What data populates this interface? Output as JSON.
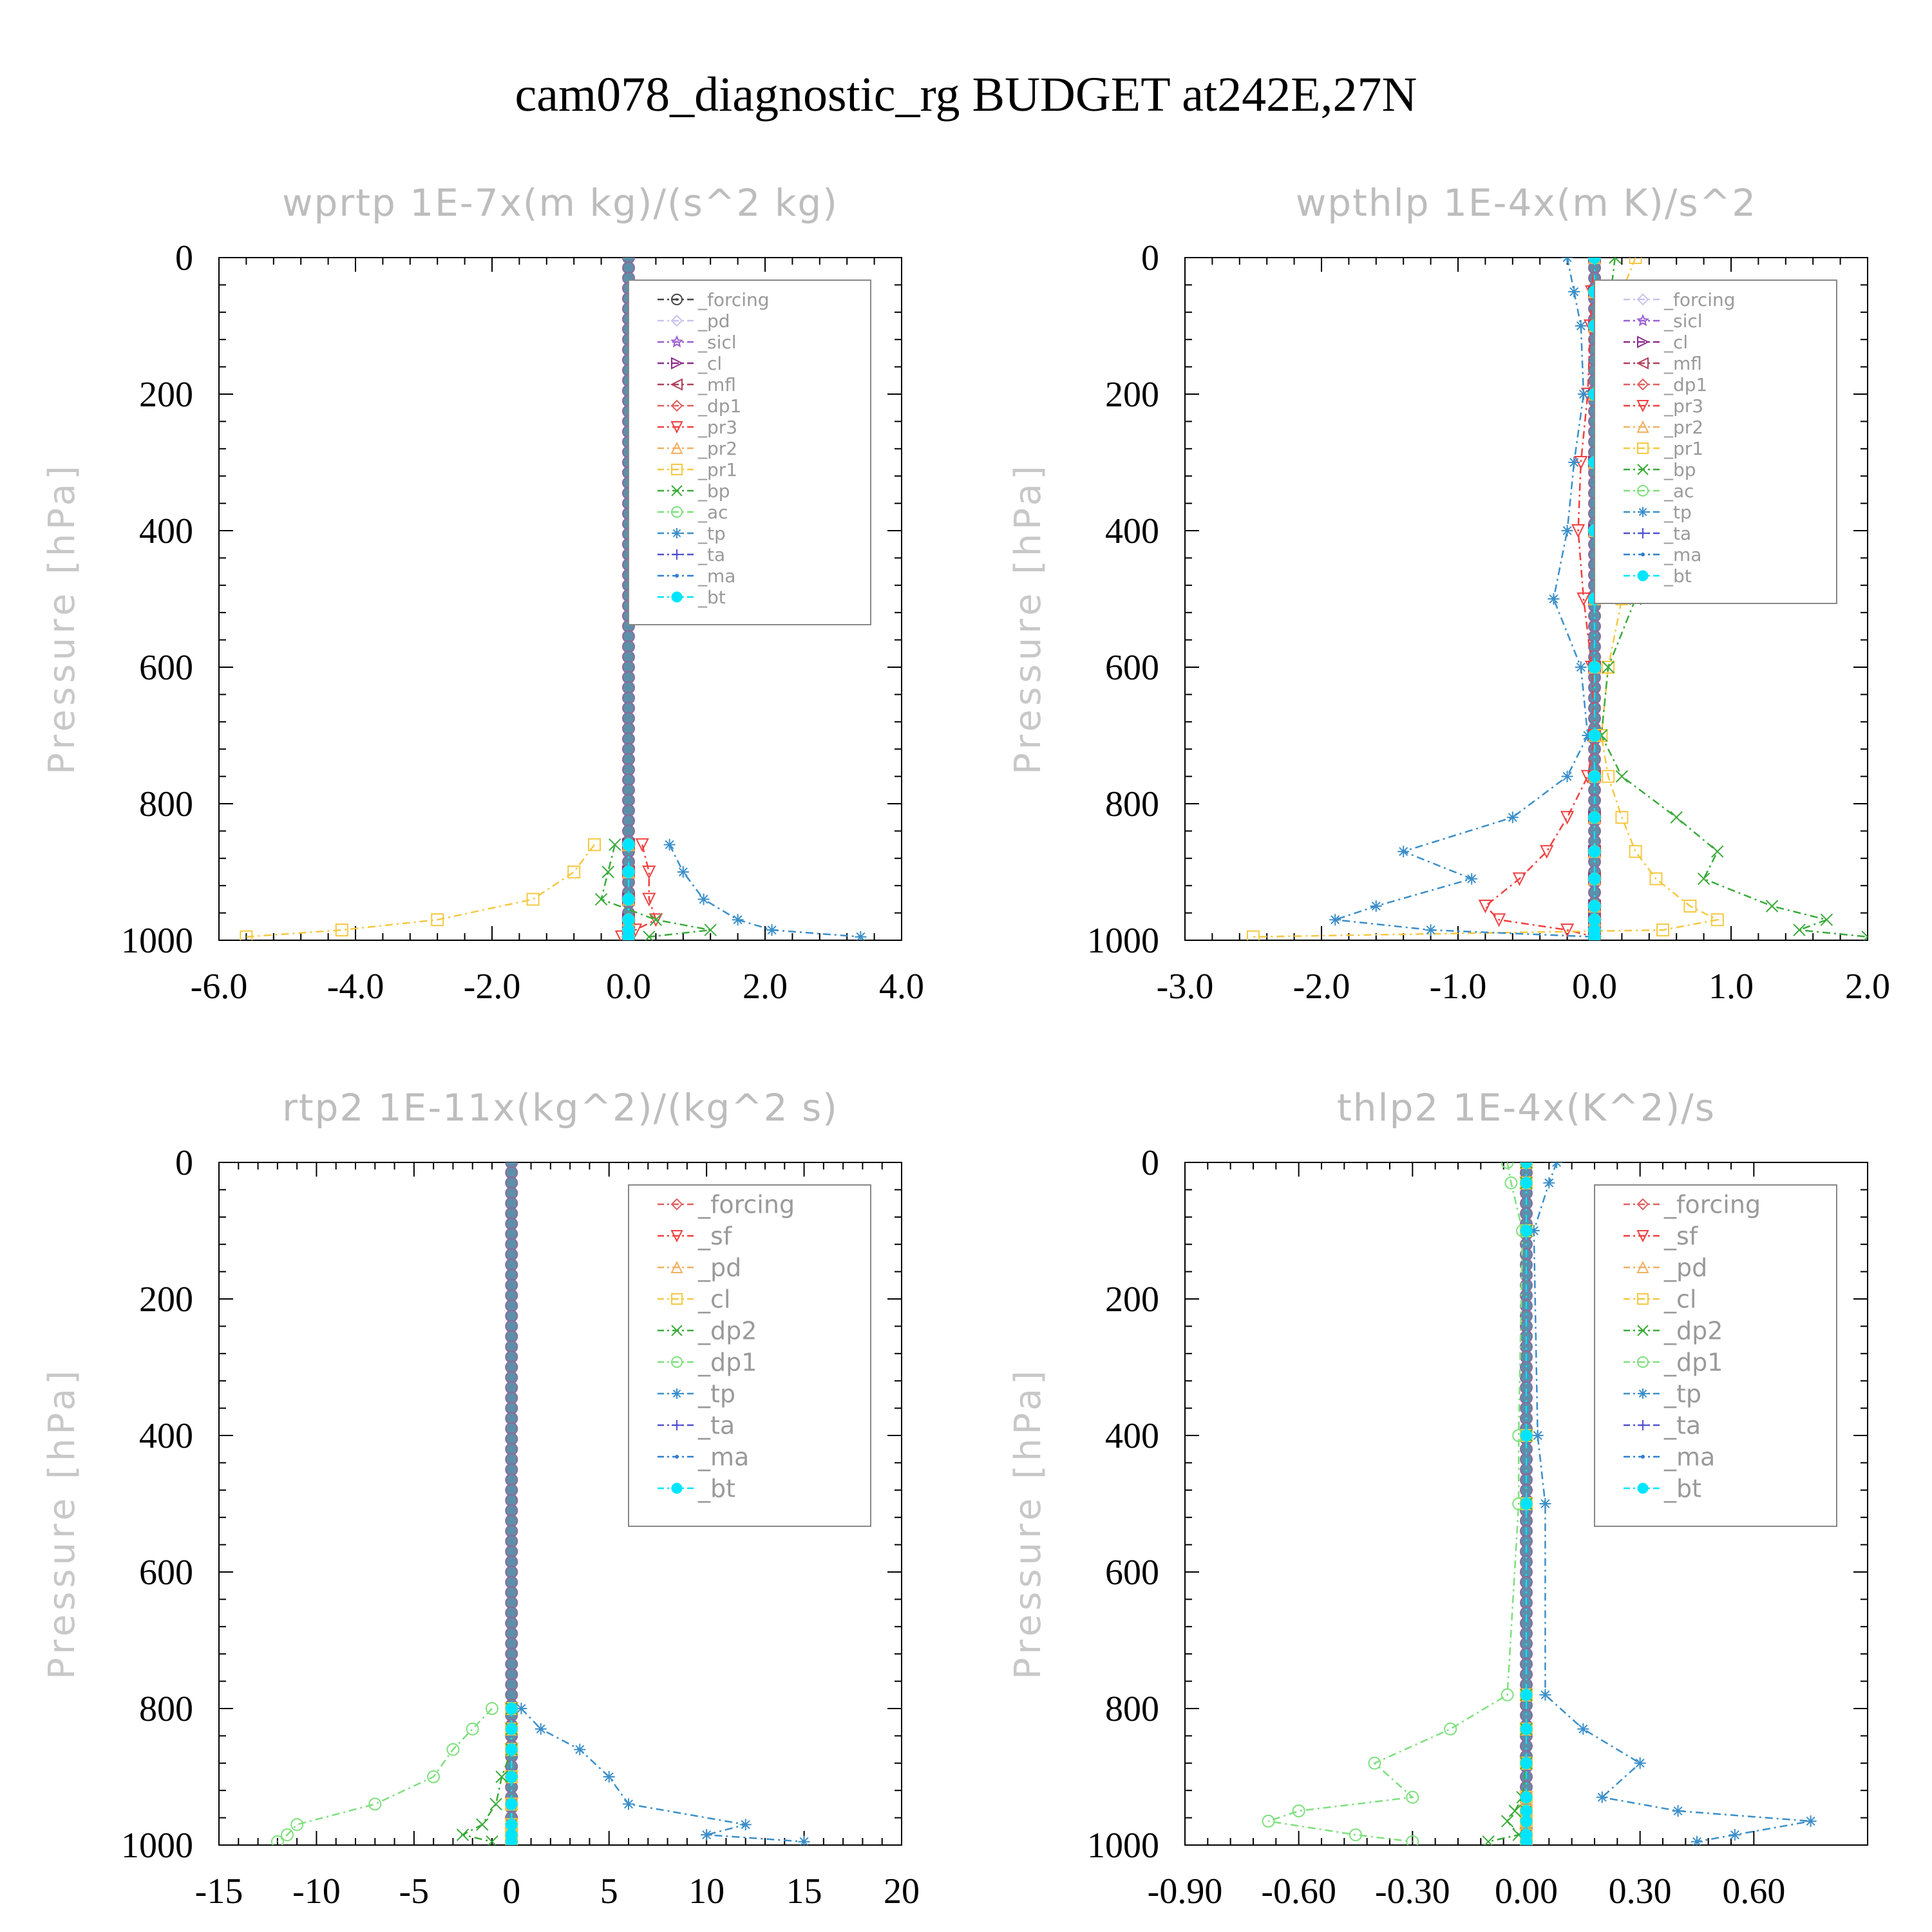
{
  "figure": {
    "title": "cam078_diagnostic_rg  BUDGET at242E,27N"
  },
  "chart_data": [
    {
      "type": "line",
      "title": "wprtp  1E-7x(m kg)/(s^2 kg)",
      "xlabel": "",
      "ylabel": "Pressure [hPa]",
      "xlim": [
        -6.0,
        4.0
      ],
      "ylim": [
        0,
        1000
      ],
      "y_inverted": true,
      "xticks": [
        "-6.0",
        "-4.0",
        "-2.0",
        "0.0",
        "2.0",
        "4.0"
      ],
      "xtick_values": [
        -6,
        -4,
        -2,
        0,
        2,
        4
      ],
      "yticks": [
        0,
        200,
        400,
        600,
        800,
        1000
      ],
      "grid": false,
      "legend_placement": "top-right",
      "pressure": [
        860,
        900,
        940,
        970,
        985,
        995
      ],
      "series": [
        {
          "name": "_forcing",
          "color": "#444444",
          "marker": "circle-dot",
          "values": [
            0,
            0,
            0,
            0,
            0,
            0
          ]
        },
        {
          "name": "_pd",
          "color": "#c9c3ef",
          "marker": "diamond",
          "values": [
            0,
            0,
            0,
            0,
            0,
            0
          ]
        },
        {
          "name": "_sicl",
          "color": "#9b5fd0",
          "marker": "star",
          "values": [
            0,
            0,
            0,
            0,
            0,
            0
          ]
        },
        {
          "name": "_cl",
          "color": "#8a2d8a",
          "marker": "triangle-right",
          "values": [
            0,
            0,
            0,
            0,
            0,
            0
          ]
        },
        {
          "name": "_mfl",
          "color": "#b0405a",
          "marker": "triangle-left",
          "values": [
            0,
            0,
            0,
            0,
            0,
            0
          ]
        },
        {
          "name": "_dp1",
          "color": "#e06060",
          "marker": "diamond",
          "values": [
            0,
            0,
            0,
            0,
            0,
            0
          ]
        },
        {
          "name": "_pr3",
          "color": "#f04040",
          "marker": "triangle-down",
          "values": [
            0.2,
            0.3,
            0.3,
            0.4,
            0.1,
            -0.1
          ]
        },
        {
          "name": "_pr2",
          "color": "#f0b060",
          "marker": "triangle-up",
          "values": [
            0,
            0,
            0,
            0,
            0,
            0
          ]
        },
        {
          "name": "_pr1",
          "color": "#f5c842",
          "marker": "square",
          "values": [
            -0.5,
            -0.8,
            -1.4,
            -2.8,
            -4.2,
            -5.6
          ]
        },
        {
          "name": "_bp",
          "color": "#3aaa3a",
          "marker": "x",
          "values": [
            -0.2,
            -0.3,
            -0.4,
            0.4,
            1.2,
            0.3
          ]
        },
        {
          "name": "_ac",
          "color": "#7de07d",
          "marker": "circle",
          "values": [
            0,
            0,
            0,
            0,
            0,
            0
          ]
        },
        {
          "name": "_tp",
          "color": "#3b8fc9",
          "marker": "asterisk",
          "values": [
            0.6,
            0.8,
            1.1,
            1.6,
            2.1,
            3.4
          ]
        },
        {
          "name": "_ta",
          "color": "#5050d0",
          "marker": "plus",
          "values": [
            0,
            0,
            0,
            0,
            0,
            0
          ]
        },
        {
          "name": "_ma",
          "color": "#2f7fd0",
          "marker": "dot",
          "values": [
            0,
            0,
            0,
            0,
            0,
            0
          ]
        },
        {
          "name": "_bt",
          "color": "#00e5ff",
          "marker": "filled-circle",
          "values": [
            0,
            0,
            0,
            0,
            0,
            0
          ]
        }
      ]
    },
    {
      "type": "line",
      "title": "wpthlp  1E-4x(m K)/s^2",
      "xlabel": "",
      "ylabel": "Pressure [hPa]",
      "xlim": [
        -3.0,
        2.0
      ],
      "ylim": [
        0,
        1000
      ],
      "y_inverted": true,
      "xticks": [
        "-3.0",
        "-2.0",
        "-1.0",
        "0.0",
        "1.0",
        "2.0"
      ],
      "xtick_values": [
        -3,
        -2,
        -1,
        0,
        1,
        2
      ],
      "yticks": [
        0,
        200,
        400,
        600,
        800,
        1000
      ],
      "grid": false,
      "legend_placement": "top-right",
      "pressure": [
        0,
        50,
        100,
        200,
        300,
        400,
        500,
        600,
        700,
        760,
        820,
        870,
        910,
        950,
        970,
        985,
        995
      ],
      "series": [
        {
          "name": "_forcing",
          "color": "#c9c3ef",
          "marker": "diamond",
          "values": [
            0,
            0,
            0,
            0,
            0,
            0,
            0,
            0,
            0,
            0,
            0,
            0,
            0,
            0,
            0,
            0,
            0
          ]
        },
        {
          "name": "_sicl",
          "color": "#9b5fd0",
          "marker": "star",
          "values": [
            0,
            0,
            0,
            0,
            0,
            0,
            0,
            0,
            0,
            0,
            0,
            0,
            0,
            0,
            0,
            0,
            0
          ]
        },
        {
          "name": "_cl",
          "color": "#8a2d8a",
          "marker": "triangle-right",
          "values": [
            0,
            0,
            0,
            0,
            0,
            0,
            0,
            0,
            0,
            0,
            0,
            0,
            0,
            0,
            0,
            0,
            0
          ]
        },
        {
          "name": "_mfl",
          "color": "#b0405a",
          "marker": "triangle-left",
          "values": [
            0,
            0,
            0,
            0,
            0,
            0,
            0,
            0,
            0,
            0,
            0,
            0,
            0,
            0,
            0,
            0,
            0
          ]
        },
        {
          "name": "_dp1",
          "color": "#e06060",
          "marker": "diamond",
          "values": [
            0,
            0,
            0,
            0,
            0,
            0,
            0,
            0,
            0,
            0,
            0,
            0,
            0,
            0,
            0,
            0,
            0
          ]
        },
        {
          "name": "_pr3",
          "color": "#f04040",
          "marker": "triangle-down",
          "values": [
            0,
            -0.02,
            -0.03,
            -0.05,
            -0.1,
            -0.12,
            -0.08,
            -0.02,
            0,
            -0.05,
            -0.2,
            -0.35,
            -0.55,
            -0.8,
            -0.7,
            -0.2,
            0
          ]
        },
        {
          "name": "_pr2",
          "color": "#f0b060",
          "marker": "triangle-up",
          "values": [
            0,
            0,
            0,
            0,
            0,
            0,
            0,
            0,
            0,
            0,
            0,
            0,
            0,
            0,
            0,
            0,
            0
          ]
        },
        {
          "name": "_pr1",
          "color": "#f5c842",
          "marker": "square",
          "values": [
            0.3,
            0.2,
            0.15,
            0.1,
            0.12,
            0.15,
            0.2,
            0.1,
            0.05,
            0.1,
            0.2,
            0.3,
            0.45,
            0.7,
            0.9,
            0.5,
            -2.5
          ]
        },
        {
          "name": "_bp",
          "color": "#3aaa3a",
          "marker": "x",
          "values": [
            0.15,
            0.12,
            0.1,
            0.2,
            0.3,
            0.4,
            0.3,
            0.1,
            0.05,
            0.2,
            0.6,
            0.9,
            0.8,
            1.3,
            1.7,
            1.5,
            2.0
          ]
        },
        {
          "name": "_ac",
          "color": "#7de07d",
          "marker": "circle",
          "values": [
            0,
            0,
            0,
            0,
            0,
            0,
            0,
            0,
            0,
            0,
            0,
            0,
            0,
            0,
            0,
            0,
            0
          ]
        },
        {
          "name": "_tp",
          "color": "#3b8fc9",
          "marker": "asterisk",
          "values": [
            -0.2,
            -0.15,
            -0.1,
            -0.08,
            -0.15,
            -0.2,
            -0.3,
            -0.1,
            -0.05,
            -0.2,
            -0.6,
            -1.4,
            -0.9,
            -1.6,
            -1.9,
            -1.2,
            0
          ]
        },
        {
          "name": "_ta",
          "color": "#5050d0",
          "marker": "plus",
          "values": [
            0,
            0,
            0,
            0,
            0,
            0,
            0,
            0,
            0,
            0,
            0,
            0,
            0,
            0,
            0,
            0,
            0
          ]
        },
        {
          "name": "_ma",
          "color": "#2f7fd0",
          "marker": "dot",
          "values": [
            0,
            0,
            0,
            0,
            0,
            0,
            0,
            0,
            0,
            0,
            0,
            0,
            0,
            0,
            0,
            0,
            0
          ]
        },
        {
          "name": "_bt",
          "color": "#00e5ff",
          "marker": "filled-circle",
          "values": [
            0,
            0,
            0,
            0,
            0,
            0,
            0,
            0,
            0,
            0,
            0,
            0,
            0,
            0,
            0,
            0,
            0
          ]
        }
      ]
    },
    {
      "type": "line",
      "title": "rtp2  1E-11x(kg^2)/(kg^2 s)",
      "xlabel": "",
      "ylabel": "Pressure [hPa]",
      "xlim": [
        -15,
        20
      ],
      "ylim": [
        0,
        1000
      ],
      "y_inverted": true,
      "xticks": [
        "-15",
        "-10",
        "-5",
        "0",
        "5",
        "10",
        "15",
        "20"
      ],
      "xtick_values": [
        -15,
        -10,
        -5,
        0,
        5,
        10,
        15,
        20
      ],
      "yticks": [
        0,
        200,
        400,
        600,
        800,
        1000
      ],
      "grid": false,
      "legend_placement": "top-right",
      "pressure": [
        800,
        830,
        860,
        900,
        940,
        970,
        985,
        995
      ],
      "series": [
        {
          "name": "_forcing",
          "color": "#e06060",
          "marker": "diamond",
          "values": [
            0,
            0,
            0,
            0,
            0,
            0,
            0,
            0
          ]
        },
        {
          "name": "_sf",
          "color": "#f04040",
          "marker": "triangle-down",
          "values": [
            0,
            0,
            0,
            0,
            0,
            0,
            0,
            0
          ]
        },
        {
          "name": "_pd",
          "color": "#f0b060",
          "marker": "triangle-up",
          "values": [
            0,
            0,
            0,
            0,
            0,
            0,
            0,
            0
          ]
        },
        {
          "name": "_cl",
          "color": "#f5c842",
          "marker": "square",
          "values": [
            0,
            0,
            0,
            0,
            0,
            0,
            0,
            0
          ]
        },
        {
          "name": "_dp2",
          "color": "#3aaa3a",
          "marker": "x",
          "values": [
            0,
            0,
            0,
            -0.5,
            -0.8,
            -1.5,
            -2.5,
            -1.0
          ]
        },
        {
          "name": "_dp1",
          "color": "#7de07d",
          "marker": "circle",
          "values": [
            -1.0,
            -2.0,
            -3.0,
            -4.0,
            -7.0,
            -11.0,
            -11.5,
            -12.0
          ]
        },
        {
          "name": "_tp",
          "color": "#3b8fc9",
          "marker": "asterisk",
          "values": [
            0.5,
            1.5,
            3.5,
            5.0,
            6.0,
            12.0,
            10.0,
            15.0
          ]
        },
        {
          "name": "_ta",
          "color": "#5050d0",
          "marker": "plus",
          "values": [
            0,
            0,
            0,
            0,
            0,
            0,
            0,
            0
          ]
        },
        {
          "name": "_ma",
          "color": "#2f7fd0",
          "marker": "dot",
          "values": [
            0,
            0,
            0,
            0,
            0,
            0,
            0,
            0
          ]
        },
        {
          "name": "_bt",
          "color": "#00e5ff",
          "marker": "filled-circle",
          "values": [
            0,
            0,
            0,
            0,
            0,
            0,
            0,
            0
          ]
        }
      ]
    },
    {
      "type": "line",
      "title": "thlp2  1E-4x(K^2)/s",
      "xlabel": "",
      "ylabel": "Pressure [hPa]",
      "xlim": [
        -0.9,
        0.9
      ],
      "ylim": [
        0,
        1000
      ],
      "y_inverted": true,
      "xticks": [
        "-0.90",
        "-0.60",
        "-0.30",
        "0.00",
        "0.30",
        "0.60"
      ],
      "xtick_values": [
        -0.9,
        -0.6,
        -0.3,
        0.0,
        0.3,
        0.6
      ],
      "yticks": [
        0,
        200,
        400,
        600,
        800,
        1000
      ],
      "grid": false,
      "legend_placement": "top-right",
      "pressure": [
        0,
        30,
        100,
        400,
        500,
        780,
        830,
        880,
        930,
        950,
        965,
        985,
        995
      ],
      "series": [
        {
          "name": "_forcing",
          "color": "#e06060",
          "marker": "diamond",
          "values": [
            0,
            0,
            0,
            0,
            0,
            0,
            0,
            0,
            0,
            0,
            0,
            0,
            0
          ]
        },
        {
          "name": "_sf",
          "color": "#f04040",
          "marker": "triangle-down",
          "values": [
            0,
            0,
            0,
            0,
            0,
            0,
            0,
            0,
            0,
            0,
            0,
            0,
            0
          ]
        },
        {
          "name": "_pd",
          "color": "#f0b060",
          "marker": "triangle-up",
          "values": [
            0,
            0,
            0,
            0,
            0,
            0,
            0,
            0,
            0,
            0,
            0,
            0,
            0
          ]
        },
        {
          "name": "_cl",
          "color": "#f5c842",
          "marker": "square",
          "values": [
            0,
            0,
            0,
            0,
            0,
            0,
            0,
            0,
            0,
            0,
            0,
            0,
            0
          ]
        },
        {
          "name": "_dp2",
          "color": "#3aaa3a",
          "marker": "x",
          "values": [
            0,
            0,
            0,
            0,
            0,
            0,
            0,
            0,
            -0.01,
            -0.03,
            -0.05,
            -0.02,
            -0.1
          ]
        },
        {
          "name": "_dp1",
          "color": "#7de07d",
          "marker": "circle",
          "values": [
            -0.05,
            -0.04,
            -0.01,
            -0.02,
            -0.02,
            -0.05,
            -0.2,
            -0.4,
            -0.3,
            -0.6,
            -0.68,
            -0.45,
            -0.3
          ]
        },
        {
          "name": "_tp",
          "color": "#3b8fc9",
          "marker": "asterisk",
          "values": [
            0.08,
            0.06,
            0.02,
            0.03,
            0.05,
            0.05,
            0.15,
            0.3,
            0.2,
            0.4,
            0.75,
            0.55,
            0.45
          ]
        },
        {
          "name": "_ta",
          "color": "#5050d0",
          "marker": "plus",
          "values": [
            0,
            0,
            0,
            0,
            0,
            0,
            0,
            0,
            0,
            0,
            0,
            0,
            0
          ]
        },
        {
          "name": "_ma",
          "color": "#2f7fd0",
          "marker": "dot",
          "values": [
            0,
            0,
            0,
            0,
            0,
            0,
            0,
            0,
            0,
            0,
            0,
            0,
            0
          ]
        },
        {
          "name": "_bt",
          "color": "#00e5ff",
          "marker": "filled-circle",
          "values": [
            0,
            0,
            0,
            0,
            0,
            0,
            0,
            0,
            0,
            0,
            0,
            0,
            0
          ]
        }
      ]
    }
  ]
}
